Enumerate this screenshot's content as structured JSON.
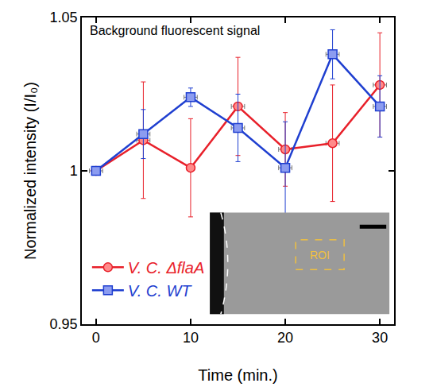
{
  "chart_data": {
    "type": "line",
    "title": "Background fluorescent signal",
    "x_label": "Time (min.)",
    "y_label": "Normalized intensity (I/I₀)",
    "xlim": [
      -1.5,
      31.5
    ],
    "xticks": [
      0,
      10,
      20,
      30
    ],
    "ylim": [
      0.95,
      1.05
    ],
    "yticks": [
      0.95,
      1,
      1.05
    ],
    "legend": "lower left",
    "grid": false,
    "inset": {
      "label": "ROI"
    },
    "series": [
      {
        "name": "V. C. ΔflaA",
        "color": "#e8202a",
        "marker": "circle",
        "x": [
          0,
          5,
          10,
          15,
          20,
          25,
          30
        ],
        "values": [
          1.0,
          1.01,
          1.001,
          1.021,
          1.007,
          1.009,
          1.028
        ],
        "y_error": [
          0,
          0.019,
          0.016,
          0.016,
          0.012,
          0.019,
          0.017
        ],
        "x_error": [
          0.7,
          0.7,
          0,
          0.7,
          0.7,
          0.7,
          0.7
        ]
      },
      {
        "name": "V. C. WT",
        "color": "#1f3fd0",
        "marker": "square",
        "x": [
          0,
          5,
          10,
          15,
          20,
          25,
          30
        ],
        "values": [
          1.0,
          1.012,
          1.024,
          1.014,
          1.001,
          1.038,
          1.021
        ],
        "y_error": [
          0,
          0.008,
          0.003,
          0.011,
          0.015,
          0.008,
          0.01
        ],
        "x_error": [
          0,
          0.7,
          0.7,
          0.7,
          0.7,
          0.7,
          0.7
        ]
      }
    ]
  }
}
